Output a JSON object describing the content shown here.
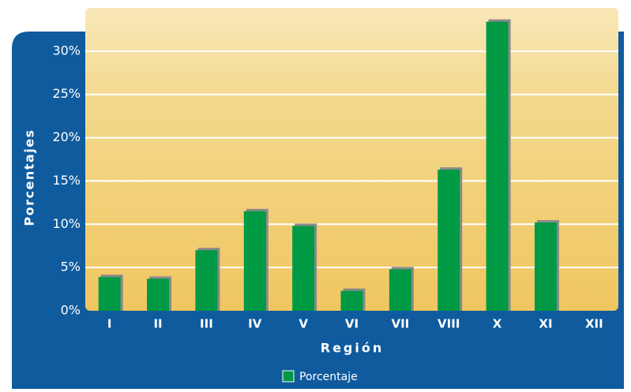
{
  "chart_data": {
    "type": "bar",
    "x_label": "Región",
    "y_label": "Porcentajes",
    "categories": [
      "I",
      "II",
      "III",
      "IV",
      "V",
      "VI",
      "VII",
      "VIII",
      "X",
      "XI",
      "XII"
    ],
    "series": [
      {
        "name": "Porcentaje",
        "color": "#009a44",
        "values": [
          3.9,
          3.7,
          7.0,
          11.5,
          9.8,
          2.3,
          4.8,
          16.3,
          33.4,
          10.2,
          0
        ]
      }
    ],
    "ylim": [
      0,
      35
    ],
    "yticks": [
      {
        "value": 0,
        "label": "0%"
      },
      {
        "value": 5,
        "label": "5%"
      },
      {
        "value": 10,
        "label": "10%"
      },
      {
        "value": 15,
        "label": "15%"
      },
      {
        "value": 20,
        "label": "20%"
      },
      {
        "value": 25,
        "label": "25%"
      },
      {
        "value": 30,
        "label": "30%"
      }
    ],
    "grid": true
  }
}
